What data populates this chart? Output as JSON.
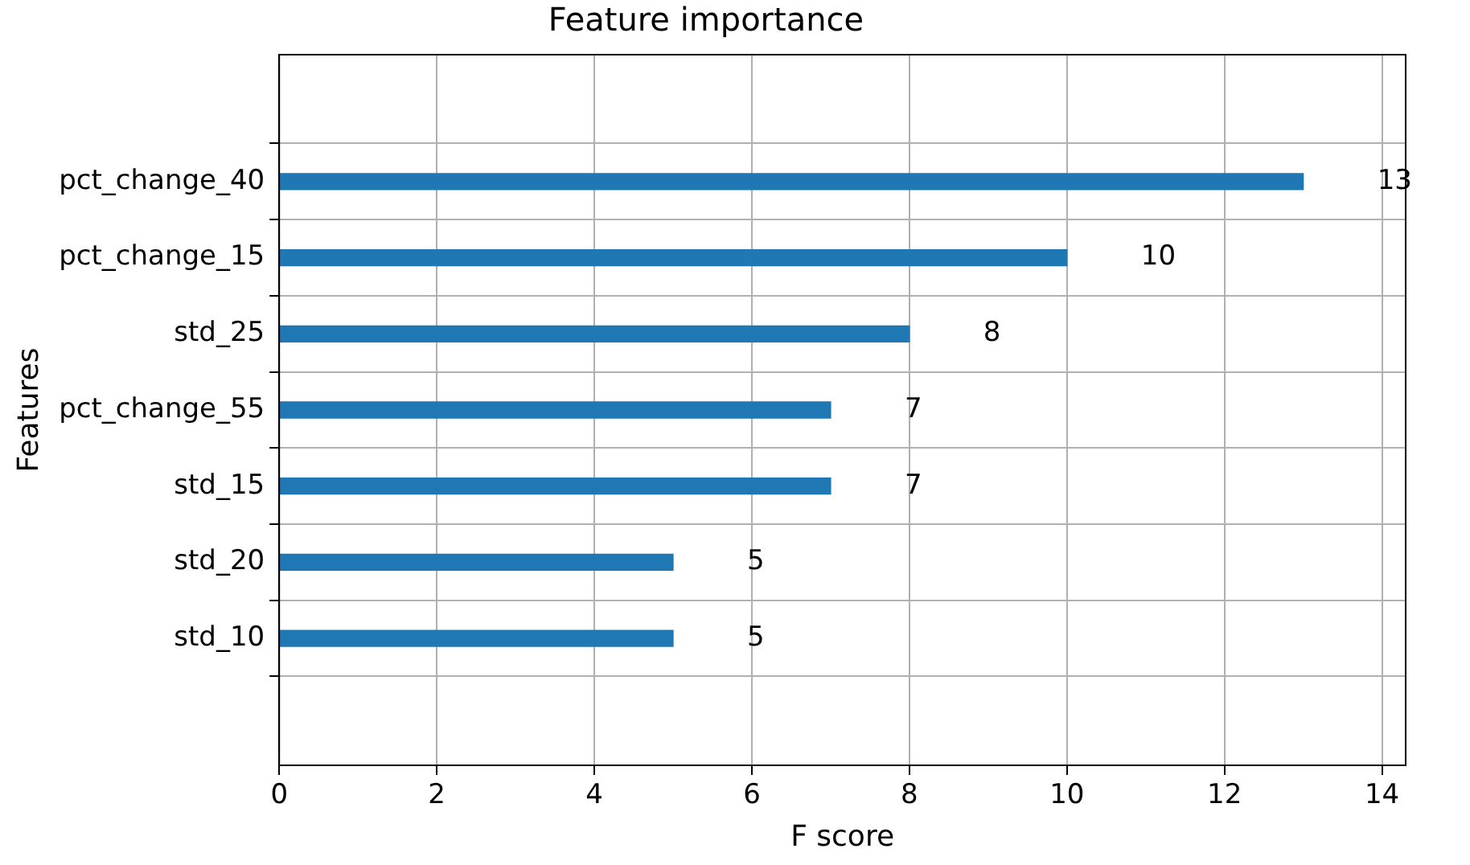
{
  "chart_data": {
    "type": "bar",
    "orientation": "horizontal",
    "title": "Feature importance",
    "xlabel": "F score",
    "ylabel": "Features",
    "categories": [
      "pct_change_40",
      "pct_change_15",
      "std_25",
      "pct_change_55",
      "std_15",
      "std_20",
      "std_10"
    ],
    "values": [
      13,
      10,
      8,
      7,
      7,
      5,
      5
    ],
    "color": "#1f77b4",
    "xlim": [
      0,
      14.3
    ],
    "xticks": [
      0,
      2,
      4,
      6,
      8,
      10,
      12,
      14
    ],
    "grid": true,
    "data_labels": true,
    "legend": false
  }
}
